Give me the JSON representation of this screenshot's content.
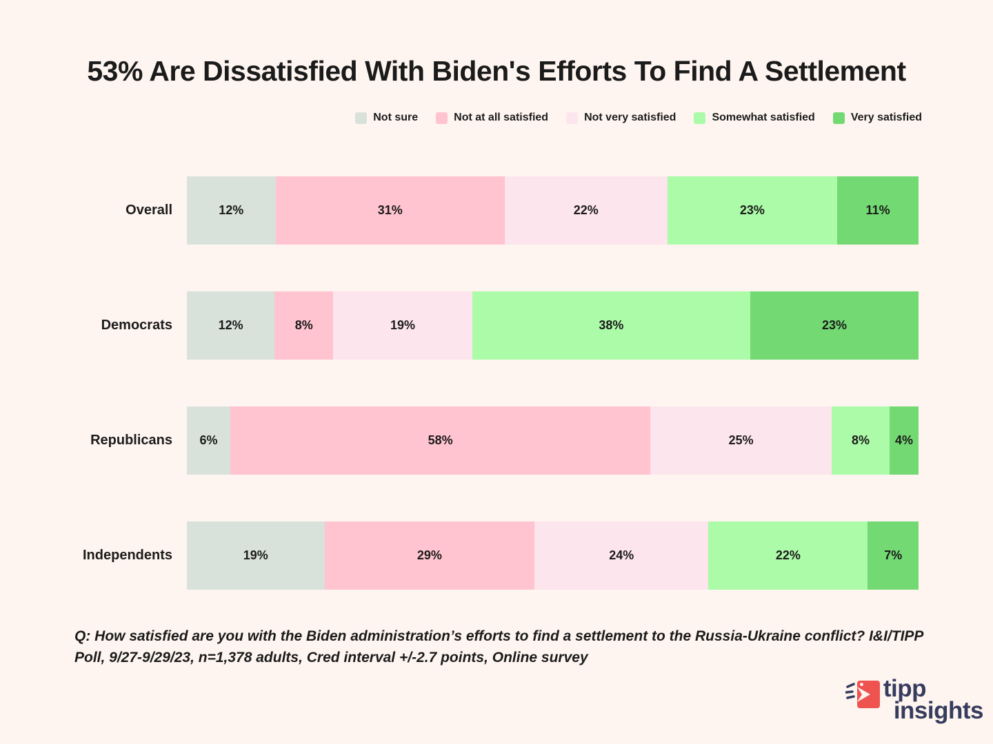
{
  "page": {
    "title": "53% Are Dissatisfied With Biden's Efforts To Find A Settlement",
    "background_color": "#fef5f0"
  },
  "chart_data": {
    "type": "bar",
    "variant": "stacked-horizontal",
    "stacked": true,
    "grid": false,
    "axis": "none",
    "legend_position": "top-right",
    "value_suffix": "%",
    "categories": [
      "Overall",
      "Democrats",
      "Republicans",
      "Independents"
    ],
    "series": [
      {
        "name": "Not sure",
        "color": "#d8e2da",
        "values": [
          12,
          12,
          6,
          19
        ]
      },
      {
        "name": "Not at all satisfied",
        "color": "#ffc4cf",
        "values": [
          31,
          8,
          58,
          29
        ]
      },
      {
        "name": "Not very satisfied",
        "color": "#fde5ed",
        "values": [
          22,
          19,
          25,
          24
        ]
      },
      {
        "name": "Somewhat satisfied",
        "color": "#acfba8",
        "values": [
          23,
          38,
          8,
          22
        ]
      },
      {
        "name": "Very satisfied",
        "color": "#73da73",
        "values": [
          11,
          23,
          4,
          7
        ]
      }
    ]
  },
  "footnote": "Q:  How satisfied are you with the Biden administration’s efforts to find a settlement to the Russia-Ukraine conflict? I&I/TIPP Poll, 9/27-9/29/23, n=1,378 adults, Cred interval +/-2.7 points, Online survey",
  "logo": {
    "word1": "tipp",
    "word2": "insights",
    "icon_color": "#ef5350",
    "text_color": "#363c5d"
  }
}
